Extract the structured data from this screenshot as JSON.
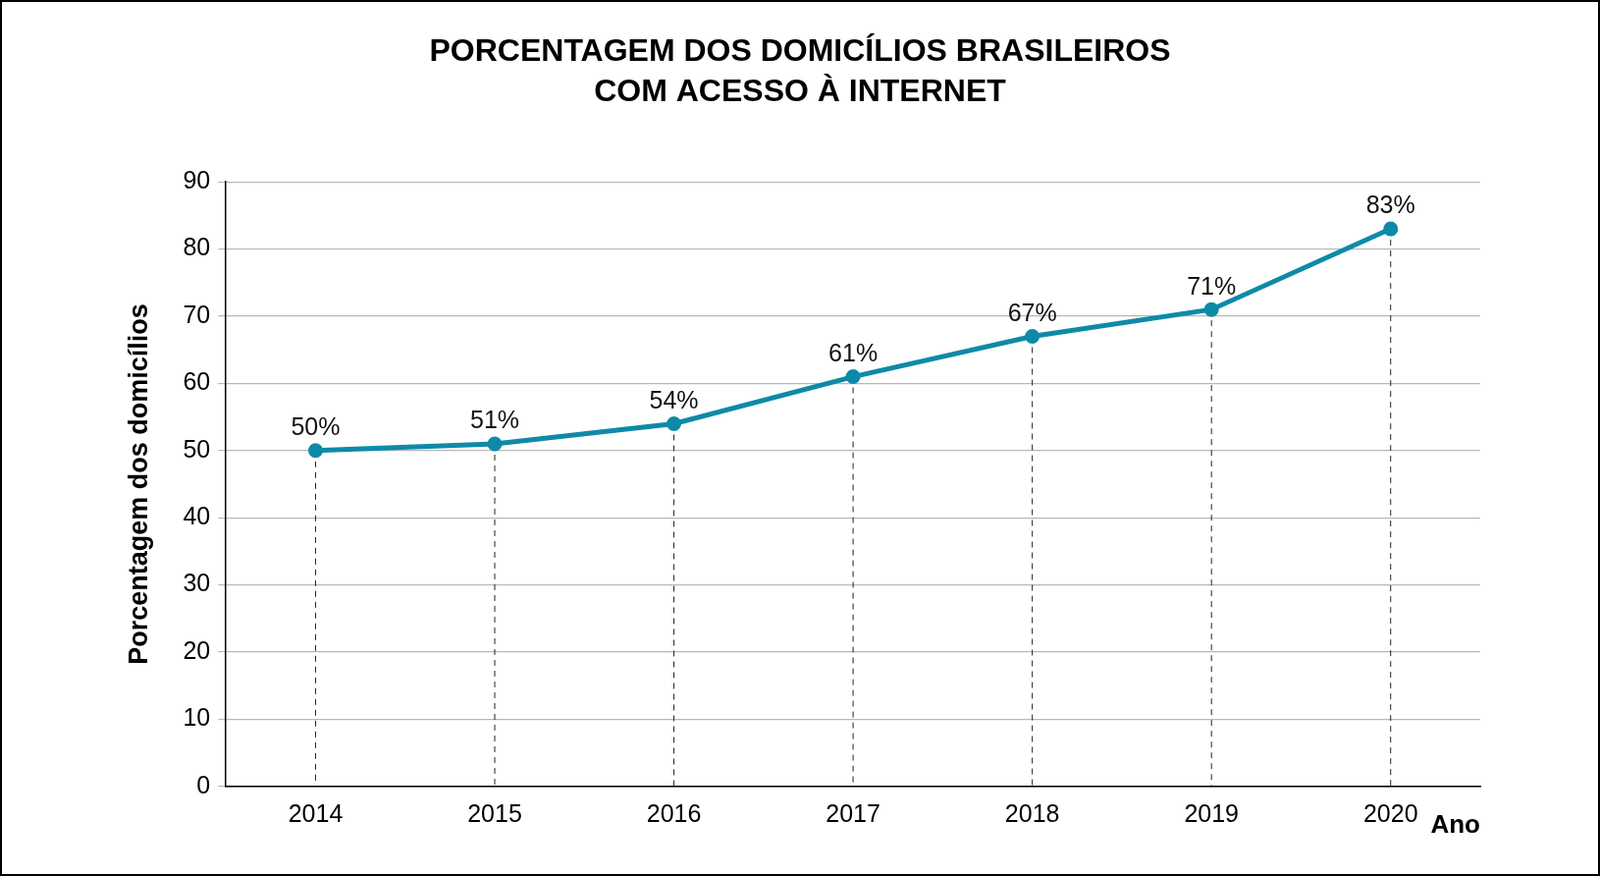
{
  "chart_data": {
    "type": "line",
    "title": [
      "PORCENTAGEM DOS DOMICÍLIOS BRASILEIROS",
      "COM ACESSO À INTERNET"
    ],
    "x_label": "Ano",
    "y_label": "Porcentagem dos domicílios",
    "categories": [
      "2014",
      "2015",
      "2016",
      "2017",
      "2018",
      "2019",
      "2020"
    ],
    "values": [
      50,
      51,
      54,
      61,
      67,
      71,
      83
    ],
    "value_labels": [
      "50%",
      "51%",
      "54%",
      "61%",
      "67%",
      "71%",
      "83%"
    ],
    "data_labels": true,
    "color": "#0e8aa8",
    "marker": "circle",
    "line_style": "solid",
    "ylim": [
      0,
      90
    ],
    "yticks": [
      0,
      10,
      20,
      30,
      40,
      50,
      60,
      70,
      80,
      90
    ],
    "grid": true
  }
}
